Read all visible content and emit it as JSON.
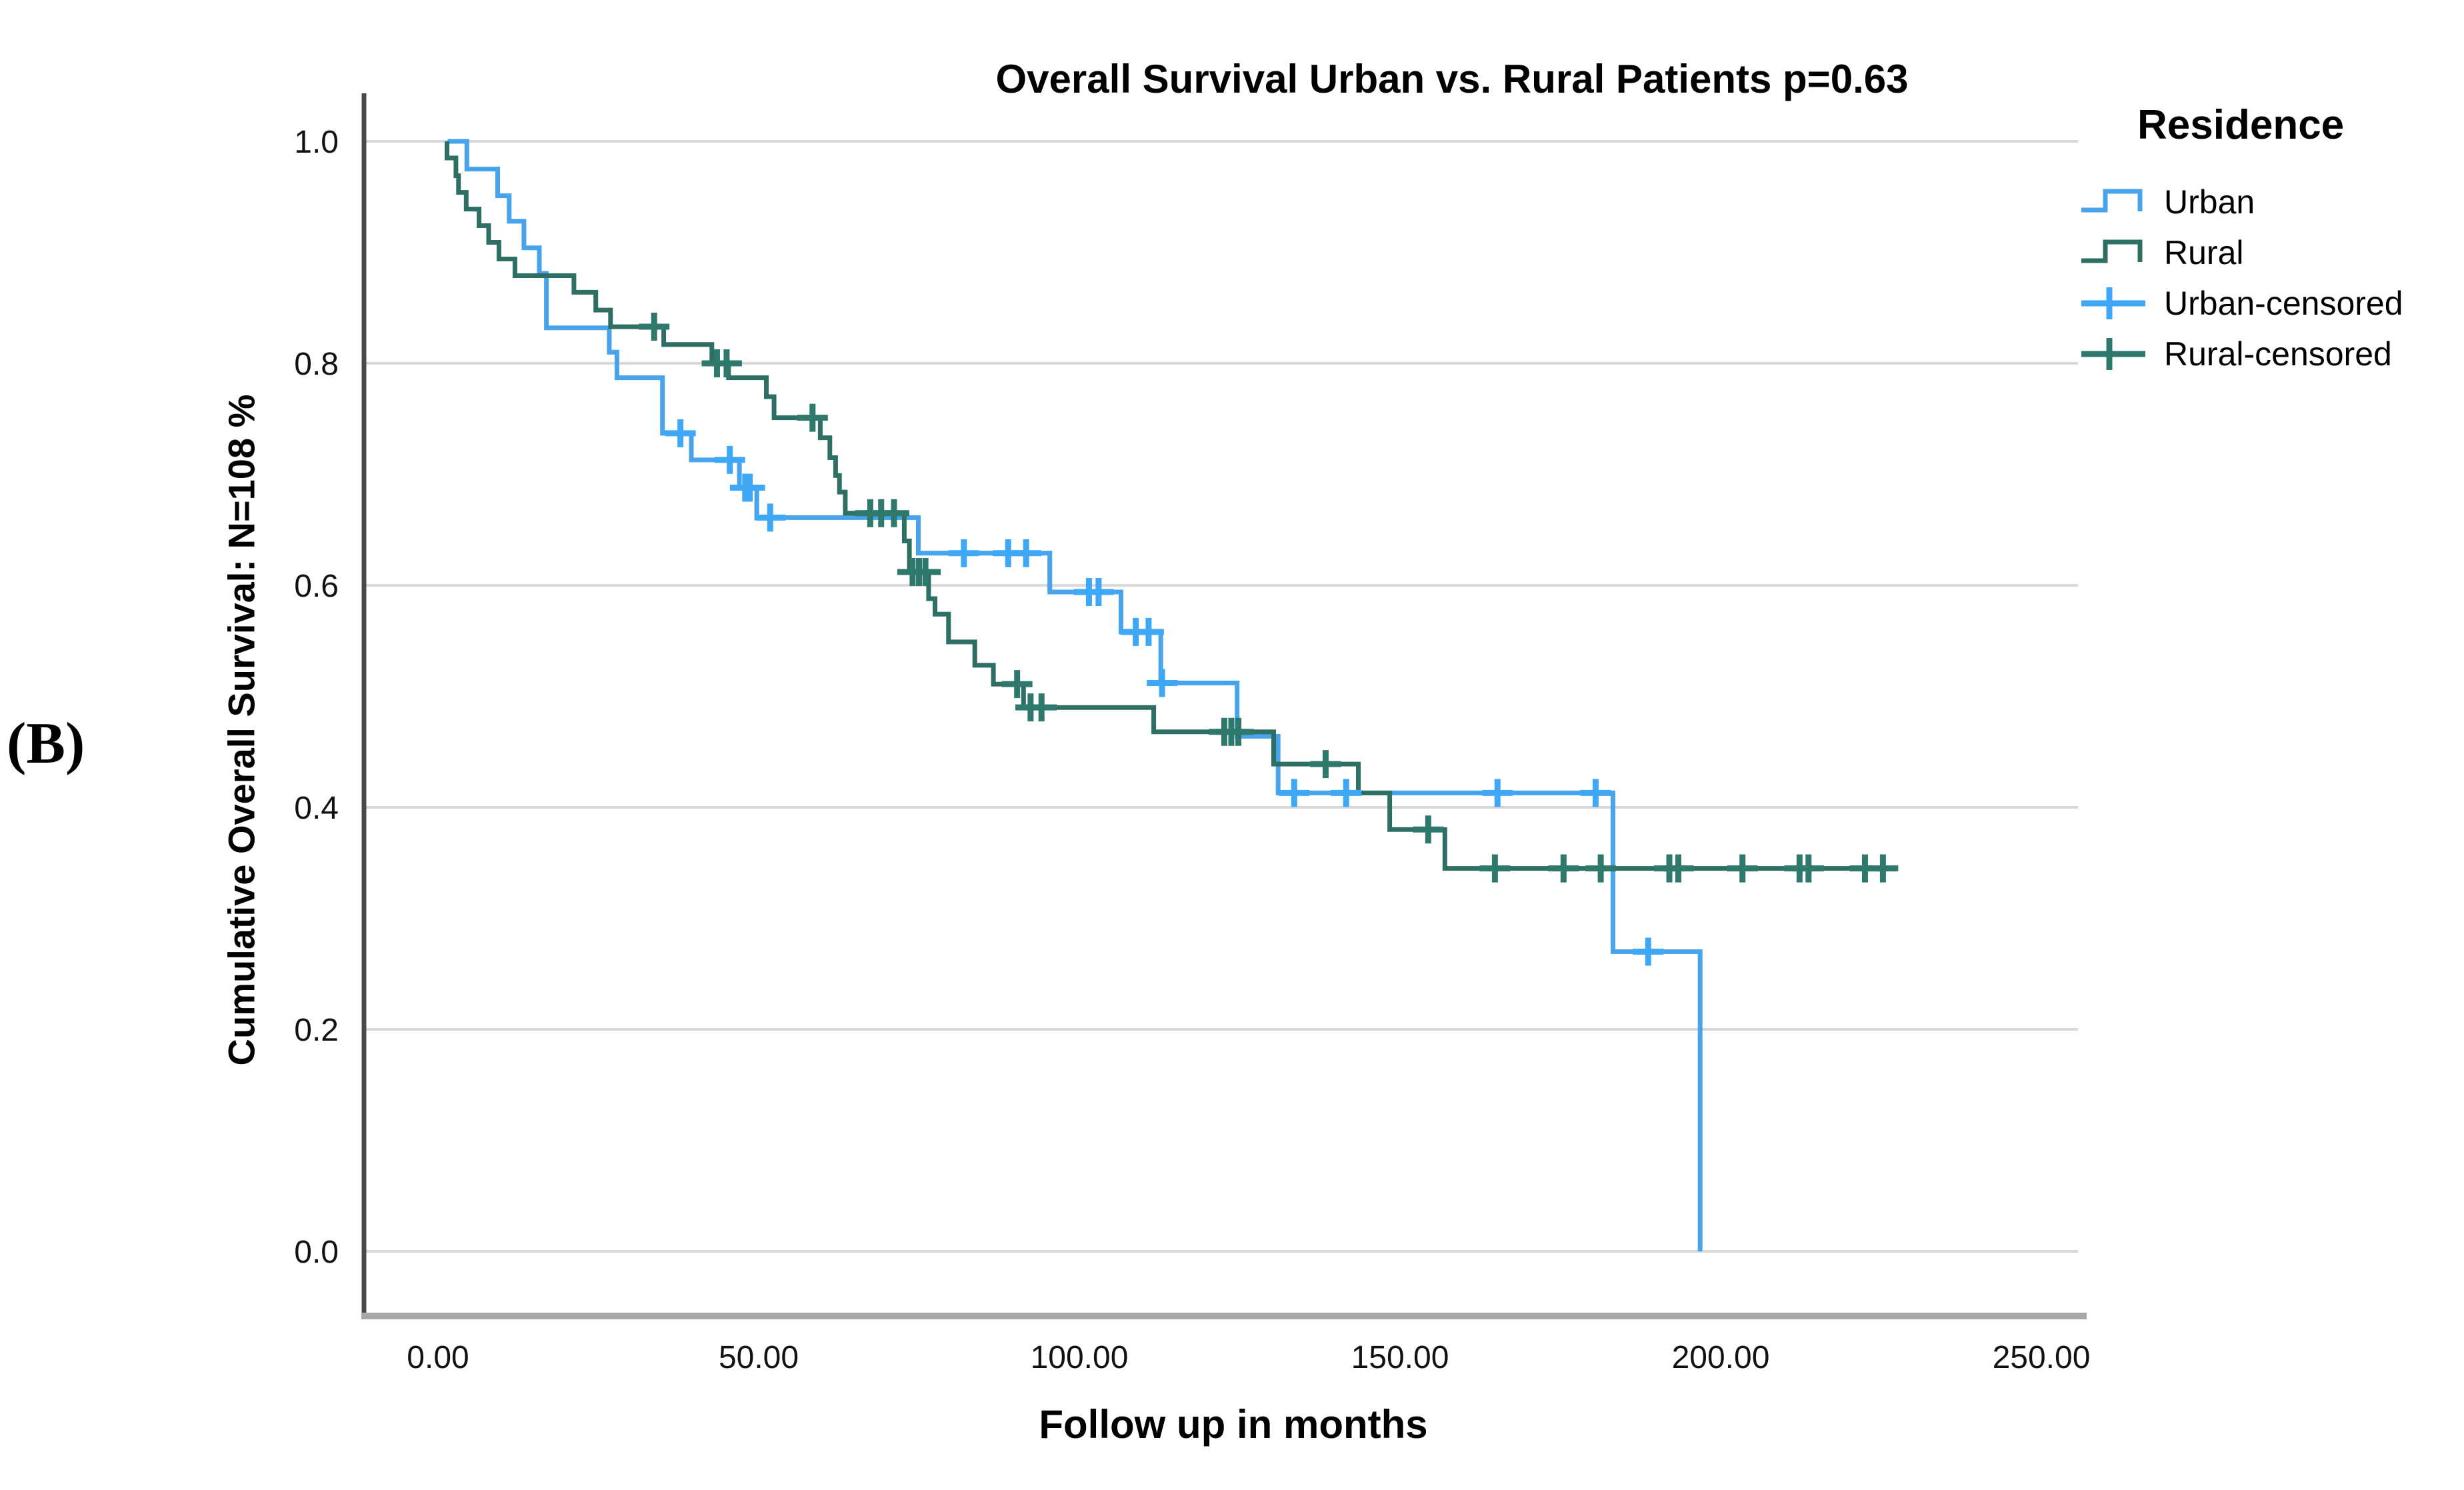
{
  "page": {
    "background": "#ffffff",
    "panel_label": "(B)"
  },
  "chart_data": {
    "type": "line",
    "subtype": "kaplan_meier_survival_step",
    "title": "Overall Survival Urban vs. Rural Patients p=0.63",
    "p_value_text": "p=0.63",
    "xlabel": "Follow up in months",
    "ylabel": "Cumulative Overall Survival: N=108 %",
    "n_total": 108,
    "xlim": [
      0,
      250
    ],
    "ylim": [
      0.0,
      1.0
    ],
    "grid": "horizontal-only",
    "legend_position": "right",
    "x_ticks": [
      {
        "value": 0,
        "label": "0.00"
      },
      {
        "value": 50,
        "label": "50.00"
      },
      {
        "value": 100,
        "label": "100.00"
      },
      {
        "value": 150,
        "label": "150.00"
      },
      {
        "value": 200,
        "label": "200.00"
      },
      {
        "value": 250,
        "label": "250.00"
      }
    ],
    "y_ticks": [
      {
        "value": 1.0,
        "label": "1.0"
      },
      {
        "value": 0.8,
        "label": "0.8"
      },
      {
        "value": 0.6,
        "label": "0.6"
      },
      {
        "value": 0.4,
        "label": "0.4"
      },
      {
        "value": 0.2,
        "label": "0.2"
      },
      {
        "value": 0.0,
        "label": "0.0"
      }
    ],
    "legend": {
      "title": "Residence",
      "entries": [
        {
          "label": "Urban",
          "swatch": "step-line",
          "series": "Urban"
        },
        {
          "label": "Rural",
          "swatch": "step-line",
          "series": "Rural"
        },
        {
          "label": "Urban-censored",
          "swatch": "censor-plus",
          "series": "Urban"
        },
        {
          "label": "Rural-censored",
          "swatch": "censor-plus",
          "series": "Rural"
        }
      ]
    },
    "series": [
      {
        "name": "Urban",
        "color": "#47A3EC",
        "censor_color": "#3EA8F7",
        "start_month": 1.5,
        "end_month": 196.8,
        "steps": [
          [
            4.5,
            0.975
          ],
          [
            9.3,
            0.951
          ],
          [
            11.1,
            0.928
          ],
          [
            13.4,
            0.904
          ],
          [
            15.8,
            0.881
          ],
          [
            16.9,
            0.832
          ],
          [
            26.7,
            0.81
          ],
          [
            27.9,
            0.787
          ],
          [
            35.0,
            0.737
          ],
          [
            39.5,
            0.713
          ],
          [
            47.0,
            0.688
          ],
          [
            49.7,
            0.661
          ],
          [
            74.9,
            0.629
          ],
          [
            95.4,
            0.594
          ],
          [
            106.5,
            0.558
          ],
          [
            112.7,
            0.512
          ],
          [
            124.6,
            0.464
          ],
          [
            131.0,
            0.413
          ],
          [
            183.2,
            0.27
          ],
          [
            196.8,
            0.0
          ]
        ],
        "censored_months": [
          37.8,
          45.5,
          47.9,
          48.6,
          51.8,
          82.0,
          88.9,
          91.7,
          101.5,
          103.0,
          108.8,
          110.8,
          112.9,
          133.5,
          141.6,
          165.2,
          180.5,
          188.7
        ]
      },
      {
        "name": "Rural",
        "color": "#2E6F64",
        "censor_color": "#2F786C",
        "start_month": 1.4,
        "end_month": 227.5,
        "steps": [
          [
            1.4,
            0.985
          ],
          [
            2.8,
            0.969
          ],
          [
            3.2,
            0.954
          ],
          [
            4.4,
            0.939
          ],
          [
            6.4,
            0.924
          ],
          [
            7.9,
            0.909
          ],
          [
            9.5,
            0.894
          ],
          [
            12.0,
            0.879
          ],
          [
            21.2,
            0.864
          ],
          [
            24.6,
            0.848
          ],
          [
            26.9,
            0.833
          ],
          [
            35.2,
            0.817
          ],
          [
            42.7,
            0.8
          ],
          [
            45.3,
            0.787
          ],
          [
            51.2,
            0.77
          ],
          [
            52.4,
            0.751
          ],
          [
            59.6,
            0.733
          ],
          [
            61.1,
            0.715
          ],
          [
            62.0,
            0.699
          ],
          [
            62.6,
            0.684
          ],
          [
            63.5,
            0.665
          ],
          [
            72.7,
            0.64
          ],
          [
            73.5,
            0.612
          ],
          [
            76.5,
            0.588
          ],
          [
            77.5,
            0.574
          ],
          [
            79.6,
            0.549
          ],
          [
            83.7,
            0.528
          ],
          [
            86.6,
            0.511
          ],
          [
            91.3,
            0.49
          ],
          [
            111.6,
            0.468
          ],
          [
            130.3,
            0.439
          ],
          [
            143.5,
            0.413
          ],
          [
            148.4,
            0.38
          ],
          [
            157.0,
            0.345
          ]
        ],
        "censored_months": [
          33.7,
          43.5,
          45.0,
          58.4,
          67.4,
          69.1,
          71.1,
          74.0,
          75.0,
          76.0,
          90.3,
          92.4,
          94.1,
          122.6,
          123.7,
          124.8,
          138.4,
          154.4,
          164.8,
          175.5,
          181.3,
          192.0,
          193.4,
          203.4,
          212.3,
          213.7,
          222.5,
          225.3
        ]
      }
    ]
  }
}
